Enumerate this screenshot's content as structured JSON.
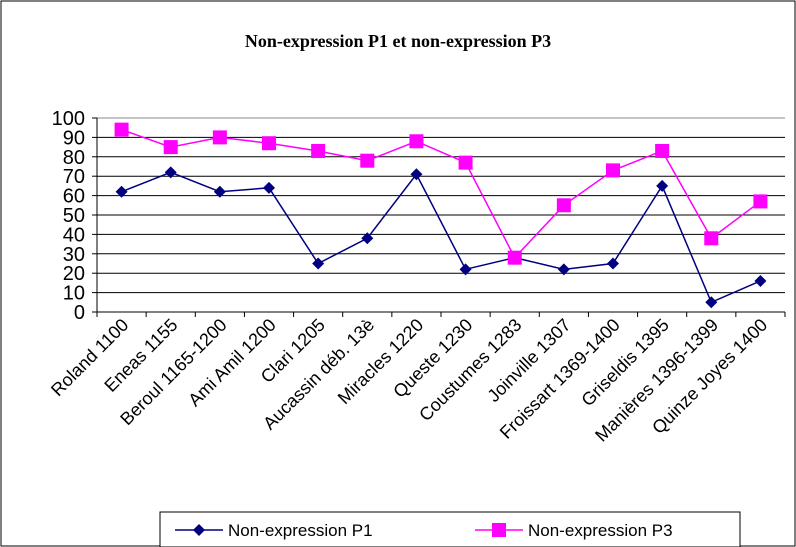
{
  "chart_data": {
    "type": "line",
    "title": "Non-expression P1 et non-expression  P3",
    "categories": [
      "Roland 1100",
      "Eneas 1155",
      "Beroul 1165-1200",
      "Ami Amil 1200",
      "Clari 1205",
      "Aucassin déb. 13è",
      "Miracles 1220",
      "Queste 1230",
      "Coustumes 1283",
      "Joinville 1307",
      "Froissart 1369-1400",
      "Griseldis 1395",
      "Manières 1396-1399",
      "Quinze Joyes 1400"
    ],
    "series": [
      {
        "name": "Non-expression P1",
        "color": "#000080",
        "marker": "diamond",
        "values": [
          62,
          72,
          62,
          64,
          25,
          38,
          71,
          22,
          28,
          22,
          25,
          65,
          5,
          16
        ]
      },
      {
        "name": "Non-expression P3",
        "color": "#ff00ff",
        "marker": "square",
        "values": [
          94,
          85,
          90,
          87,
          83,
          78,
          88,
          77,
          28,
          55,
          73,
          83,
          38,
          57
        ]
      }
    ],
    "ylim": [
      0,
      100
    ],
    "yticks": [
      0,
      10,
      20,
      30,
      40,
      50,
      60,
      70,
      80,
      90,
      100
    ],
    "grid": true,
    "legend": "bottom"
  }
}
